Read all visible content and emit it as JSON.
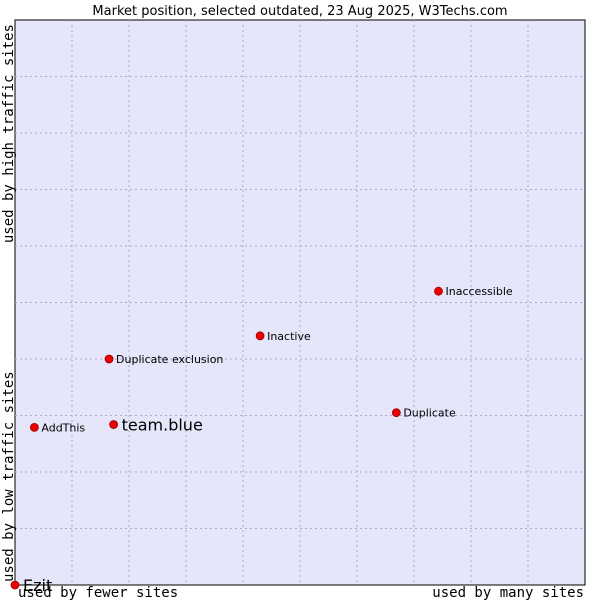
{
  "chart_data": {
    "type": "scatter",
    "title": "Market position, selected outdated, 23 Aug 2025, W3Techs.com",
    "xlabel_left": "used by fewer sites",
    "xlabel_right": "used by many sites",
    "ylabel_low": "used by low traffic sites",
    "ylabel_high": "used by high traffic sites",
    "grid": true,
    "xlim": [
      0,
      100
    ],
    "ylim": [
      0,
      100
    ],
    "colors": {
      "plot_background": "#e6e6fa",
      "grid": "#a9a9cc",
      "marker": "#ee0000",
      "border": "#000000"
    },
    "points": [
      {
        "label": "Inaccessible",
        "x": 74.3,
        "y": 52.0,
        "highlight": false
      },
      {
        "label": "Inactive",
        "x": 43.0,
        "y": 44.1,
        "highlight": false
      },
      {
        "label": "Duplicate exclusion",
        "x": 16.5,
        "y": 40.0,
        "highlight": false
      },
      {
        "label": "Duplicate",
        "x": 66.9,
        "y": 30.5,
        "highlight": false
      },
      {
        "label": "team.blue",
        "x": 17.3,
        "y": 28.4,
        "highlight": true
      },
      {
        "label": "AddThis",
        "x": 3.4,
        "y": 27.9,
        "highlight": false
      },
      {
        "label": "Ezit",
        "x": 0.0,
        "y": 0.0,
        "highlight": true
      }
    ]
  }
}
